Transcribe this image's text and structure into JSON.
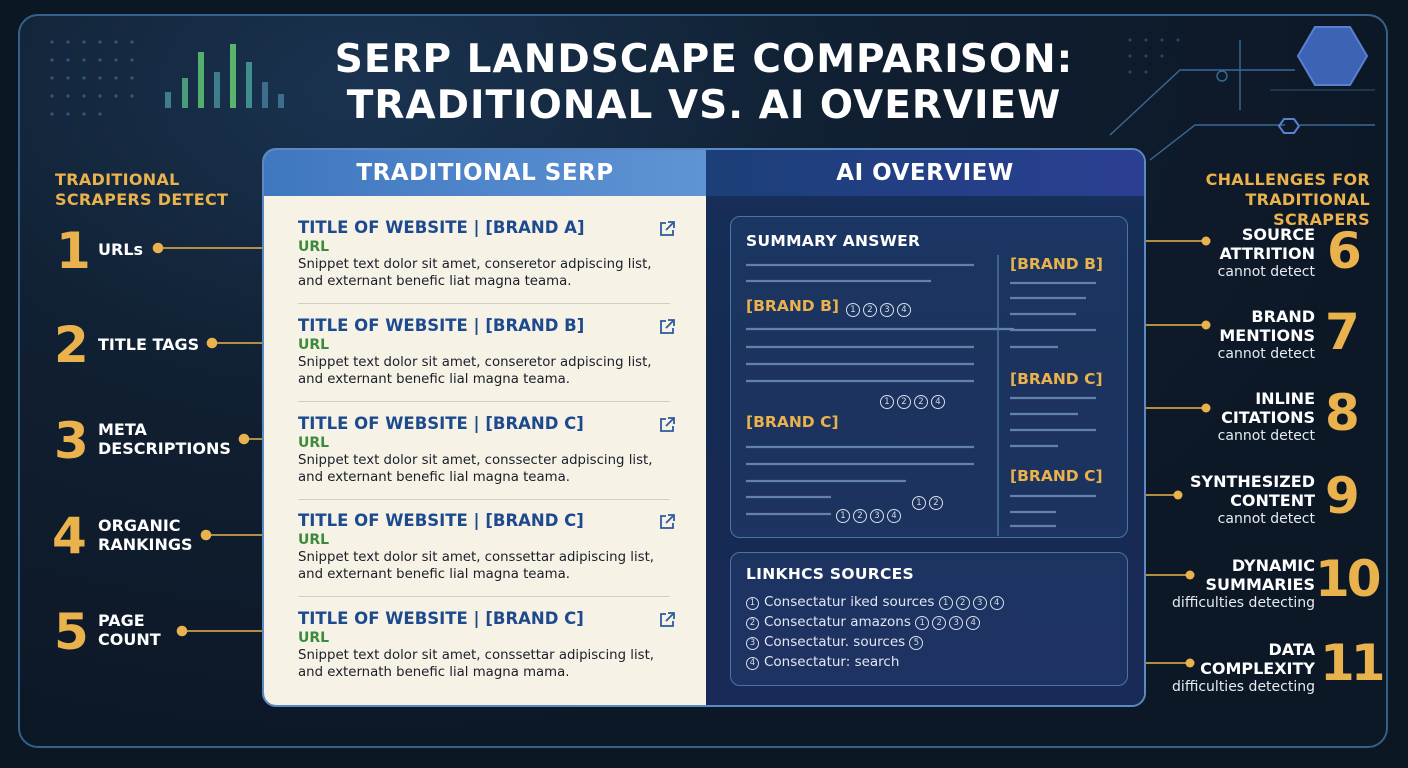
{
  "title": {
    "line1": "SERP LANDSCAPE COMPARISON:",
    "line2": "TRADITIONAL VS. AI OVERVIEW"
  },
  "left": {
    "heading1": "TRADITIONAL",
    "heading2": "SCRAPERS DETECT",
    "items": [
      {
        "num": "1",
        "line1": "URLs",
        "line2": ""
      },
      {
        "num": "2",
        "line1": "TITLE TAGS",
        "line2": ""
      },
      {
        "num": "3",
        "line1": "META",
        "line2": "DESCRIPTIONS"
      },
      {
        "num": "4",
        "line1": "ORGANIC",
        "line2": "RANKINGS"
      },
      {
        "num": "5",
        "line1": "PAGE",
        "line2": "COUNT"
      }
    ]
  },
  "right": {
    "heading1": "CHALLENGES FOR",
    "heading2": "TRADITIONAL SCRAPERS",
    "items": [
      {
        "num": "6",
        "line1": "SOURCE",
        "line2": "ATTRITION",
        "sub": "cannot detect"
      },
      {
        "num": "7",
        "line1": "BRAND",
        "line2": "MENTIONS",
        "sub": "cannot detect"
      },
      {
        "num": "8",
        "line1": "INLINE",
        "line2": "CITATIONS",
        "sub": "cannot detect"
      },
      {
        "num": "9",
        "line1": "SYNTHESIZED",
        "line2": "CONTENT",
        "sub": "cannot detect"
      },
      {
        "num": "10",
        "line1": "DYNAMIC",
        "line2": "SUMMARIES",
        "sub": "difficulties detecting"
      },
      {
        "num": "11",
        "line1": "DATA",
        "line2": "COMPLEXITY",
        "sub": "difficulties detecting"
      }
    ]
  },
  "traditional": {
    "header": "TRADITIONAL SERP",
    "results": [
      {
        "title": "TITLE OF WEBSITE | [BRAND A]",
        "url": "URL",
        "snippet1": "Snippet text dolor sit amet, conseretor adpiscing list,",
        "snippet2": "and externant benefic liat magna teama."
      },
      {
        "title": "TITLE OF WEBSITE | [BRAND B]",
        "url": "URL",
        "snippet1": "Snippet text dolor sit amet, conseretor adpiscing list,",
        "snippet2": "and externant benefic lial magna teama."
      },
      {
        "title": "TITLE OF WEBSITE | [BRAND C]",
        "url": "URL",
        "snippet1": "Snippet text dolor sit amet, conssecter adpiscing list,",
        "snippet2": "and externant benefic lial magna teama."
      },
      {
        "title": "TITLE OF WEBSITE | [BRAND C]",
        "url": "URL",
        "snippet1": "Snippet text dolor sit amet, conssettar adipiscing list,",
        "snippet2": "and externant benefic lial magna teama."
      },
      {
        "title": "TITLE OF WEBSITE | [BRAND C]",
        "url": "URL",
        "snippet1": "Snippet text dolor sit amet, conssettar adipiscing list,",
        "snippet2": "and externath benefic lial magna mama."
      }
    ]
  },
  "ai": {
    "header": "AI OVERVIEW",
    "summary_label": "SUMMARY ANSWER",
    "brand_b_left": "[BRAND B]",
    "brand_c_left": "[BRAND C]",
    "brand_b_right": "[BRAND B]",
    "brand_c_right1": "[BRAND C]",
    "brand_c_right2": "[BRAND C]",
    "cite_a": [
      "1",
      "2",
      "3",
      "4"
    ],
    "cite_b": [
      "1",
      "2",
      "2",
      "4"
    ],
    "cite_c": [
      "1",
      "2"
    ],
    "cite_d": [
      "1",
      "2",
      "3",
      "4"
    ],
    "sources_label": "LINKHСS SOURCES",
    "sources": [
      {
        "n": "1",
        "text": "Consectatur iked sources",
        "cites": [
          "1",
          "2",
          "3",
          "4"
        ]
      },
      {
        "n": "2",
        "text": "Consectatur amazons",
        "cites": [
          "1",
          "2",
          "3",
          "4"
        ]
      },
      {
        "n": "3",
        "text": "Consectatur. sources",
        "cites": [
          "5"
        ]
      },
      {
        "n": "4",
        "text": "Consectatur: search",
        "cites": []
      }
    ]
  }
}
